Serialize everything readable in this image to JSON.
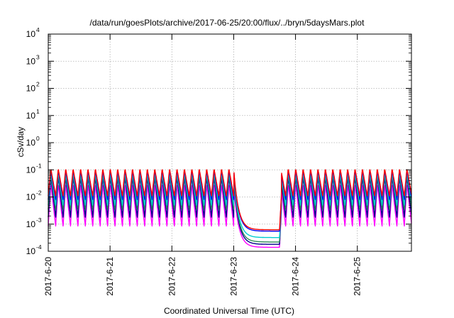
{
  "chart_data": {
    "type": "line",
    "title": "/data/run/goesPlots/archive/2017-06-25/20:00/flux/../bryn/5daysMars.plot",
    "xlabel": "Coordinated Universal Time (UTC)",
    "ylabel": "cSv/day",
    "y_scale": "log",
    "ylim": [
      0.0001,
      10000
    ],
    "xlim": [
      "2017-06-20",
      "2017-06-25 21:00"
    ],
    "y_ticks": [
      {
        "value": 0.0001,
        "base": "10",
        "exp": "-4"
      },
      {
        "value": 0.001,
        "base": "10",
        "exp": "-3"
      },
      {
        "value": 0.01,
        "base": "10",
        "exp": "-2"
      },
      {
        "value": 0.1,
        "base": "10",
        "exp": "-1"
      },
      {
        "value": 1,
        "base": "10",
        "exp": "0"
      },
      {
        "value": 10,
        "base": "10",
        "exp": "1"
      },
      {
        "value": 100,
        "base": "10",
        "exp": "2"
      },
      {
        "value": 1000,
        "base": "10",
        "exp": "3"
      },
      {
        "value": 10000,
        "base": "10",
        "exp": "4"
      }
    ],
    "x_ticks": [
      "2017-6-20",
      "2017-6-21",
      "2017-6-22",
      "2017-6-23",
      "2017-6-24",
      "2017-6-25"
    ],
    "grid": true,
    "legend": "none",
    "oscillation_period_hours": 2.88,
    "oscillation_peak_fraction": 0.35,
    "gap": {
      "start": "2017-06-23 00:00",
      "end": "2017-06-23 18:30"
    },
    "series": [
      {
        "color": "#ff00ff",
        "peak": 0.03,
        "trough": 0.00085,
        "quiet_level": 0.00014
      },
      {
        "color": "#00008b",
        "peak": 0.055,
        "trough": 0.0018,
        "quiet_level": 0.00018
      },
      {
        "color": "#2e8b57",
        "peak": 0.07,
        "trough": 0.0035,
        "quiet_level": 0.00022
      },
      {
        "color": "#00ced1",
        "peak": 0.085,
        "trough": 0.005,
        "quiet_level": 0.00032
      },
      {
        "color": "#0000ff",
        "peak": 0.1,
        "trough": 0.008,
        "quiet_level": 0.00055
      },
      {
        "color": "#ff0000",
        "peak": 0.11,
        "trough": 0.011,
        "quiet_level": 0.00062
      }
    ]
  }
}
